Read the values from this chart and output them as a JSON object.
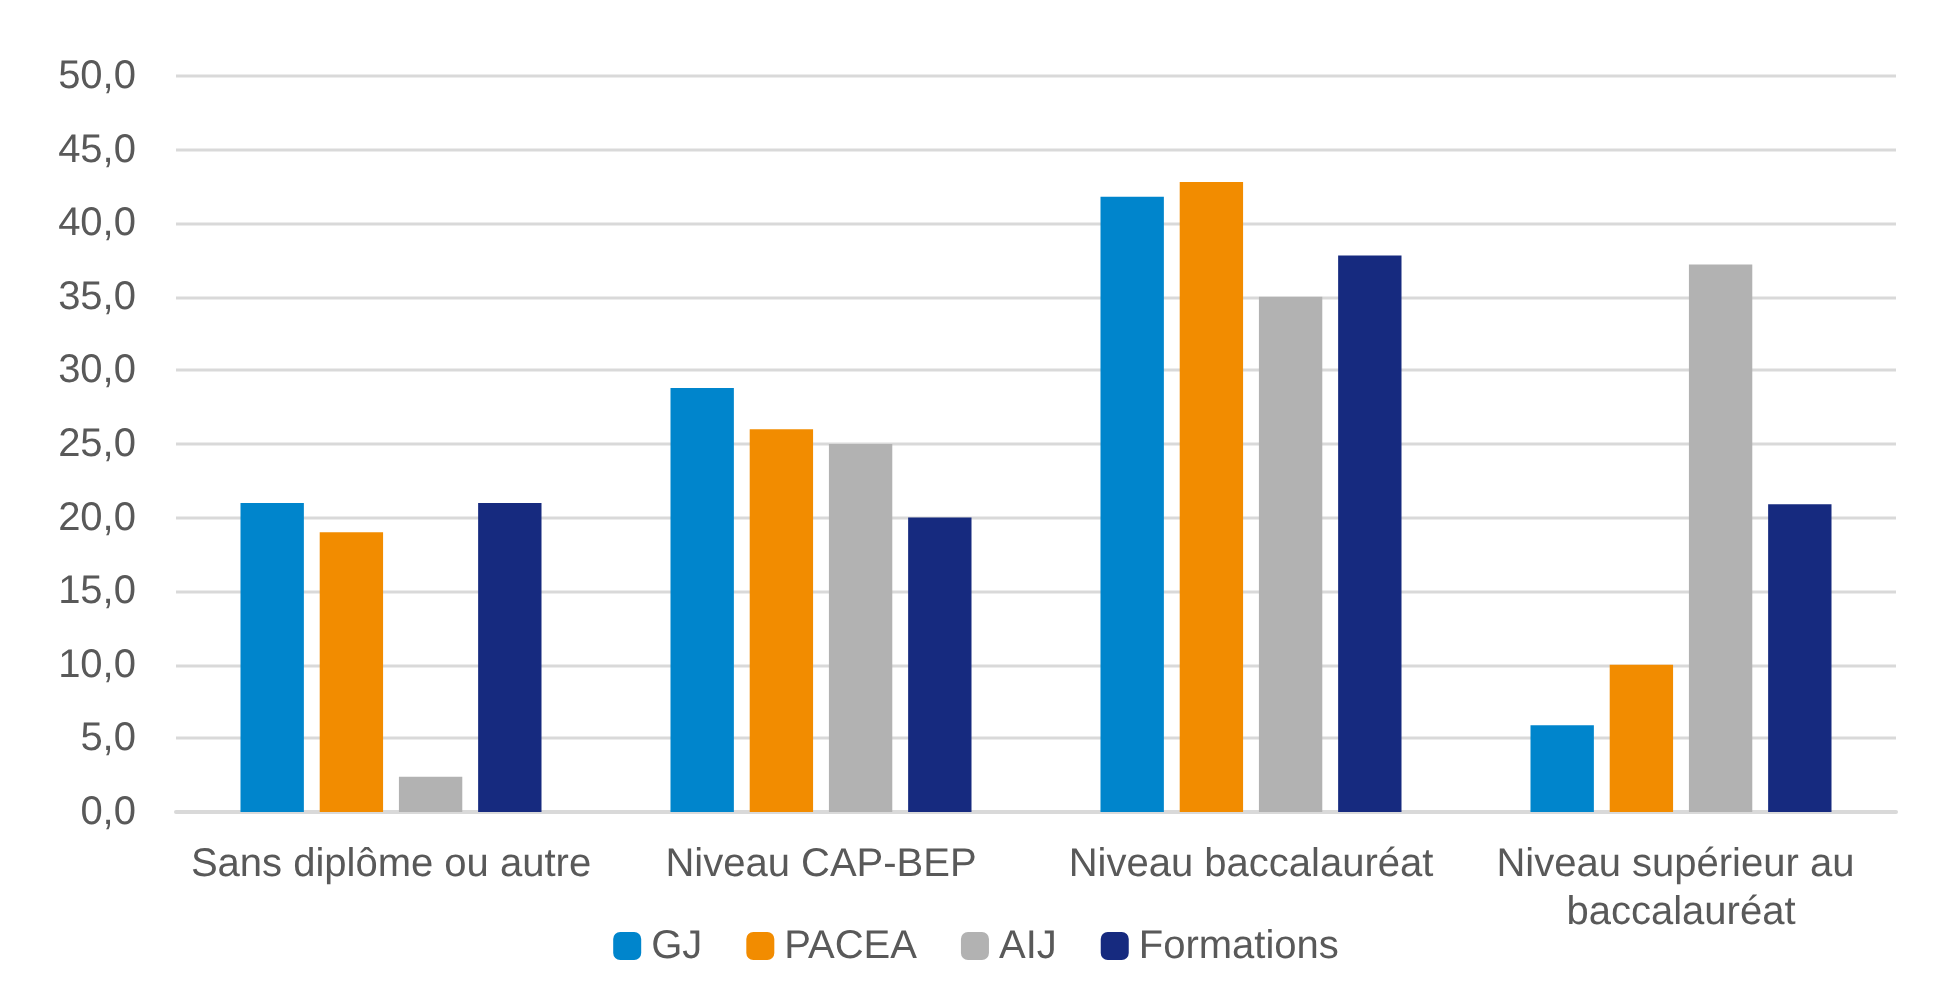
{
  "chart_data": {
    "type": "bar",
    "categories": [
      "Sans diplôme ou autre",
      "Niveau CAP-BEP",
      "Niveau baccalauréat",
      "Niveau supérieur au baccalauréat"
    ],
    "series": [
      {
        "name": "GJ",
        "color": "#0085cc",
        "values": [
          21,
          28.8,
          41.8,
          5.9
        ]
      },
      {
        "name": "PACEA",
        "color": "#f28c00",
        "values": [
          19,
          26,
          42.8,
          10
        ]
      },
      {
        "name": "AIJ",
        "color": "#b2b2b2",
        "values": [
          2.4,
          25,
          35,
          37.2
        ]
      },
      {
        "name": "Formations",
        "color": "#162a7f",
        "values": [
          21,
          20,
          37.8,
          20.9
        ]
      }
    ],
    "ylim": [
      0,
      50
    ],
    "yticks": [
      {
        "value": 0,
        "label": "0,0"
      },
      {
        "value": 5,
        "label": "5,0"
      },
      {
        "value": 10,
        "label": "10,0"
      },
      {
        "value": 15,
        "label": "15,0"
      },
      {
        "value": 20,
        "label": "20,0"
      },
      {
        "value": 25,
        "label": "25,0"
      },
      {
        "value": 30,
        "label": "30,0"
      },
      {
        "value": 35,
        "label": "35,0"
      },
      {
        "value": 40,
        "label": "40,0"
      },
      {
        "value": 45,
        "label": "45,0"
      },
      {
        "value": 50,
        "label": "50,0"
      }
    ],
    "grid": "y",
    "legend": "bottom"
  }
}
